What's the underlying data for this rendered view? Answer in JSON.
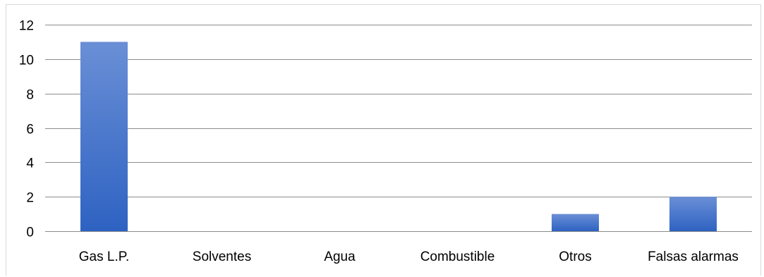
{
  "chart_data": {
    "type": "bar",
    "title": "",
    "xlabel": "",
    "ylabel": "",
    "categories": [
      "Gas L.P.",
      "Solventes",
      "Agua",
      "Combustible",
      "Otros",
      "Falsas alarmas"
    ],
    "values": [
      11,
      0,
      0,
      0,
      1,
      2
    ],
    "ylim": [
      0,
      12
    ],
    "yticks": [
      0,
      2,
      4,
      6,
      8,
      10,
      12
    ],
    "grid": true,
    "legend": "none",
    "colors": {
      "bar_top": "#6a8fd6",
      "bar_bottom": "#2e62c2",
      "grid": "#8c8c8c",
      "axis_text": "#000000",
      "frame": "#d9d9d9"
    }
  }
}
